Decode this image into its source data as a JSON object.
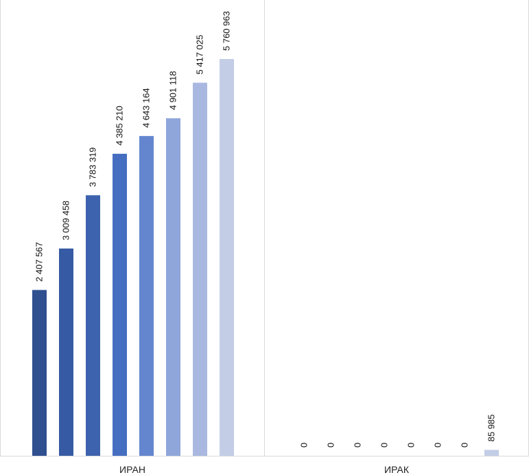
{
  "chart_data": {
    "type": "bar",
    "categories": [
      "ИРАН",
      "ИРАК"
    ],
    "series": [
      {
        "values": [
          2407567,
          0
        ],
        "labels": [
          "2 407 567",
          "0"
        ],
        "color": "#2f4f8f"
      },
      {
        "values": [
          3009458,
          0
        ],
        "labels": [
          "3 009 458",
          "0"
        ],
        "color": "#365aa3"
      },
      {
        "values": [
          3783319,
          0
        ],
        "labels": [
          "3 783 319",
          "0"
        ],
        "color": "#3d62ae"
      },
      {
        "values": [
          4385210,
          0
        ],
        "labels": [
          "4 385 210",
          "0"
        ],
        "color": "#456ec0"
      },
      {
        "values": [
          4643164,
          0
        ],
        "labels": [
          "4 643 164",
          "0"
        ],
        "color": "#6486cf"
      },
      {
        "values": [
          4901118,
          0
        ],
        "labels": [
          "4 901 118",
          "0"
        ],
        "color": "#8ea6da"
      },
      {
        "values": [
          5417025,
          0
        ],
        "labels": [
          "5 417 025",
          "0"
        ],
        "color": "#a9b8e0"
      },
      {
        "values": [
          5760963,
          85985
        ],
        "labels": [
          "5 760 963",
          "85 985"
        ],
        "color": "#c3cde6"
      }
    ],
    "ylim": [
      0,
      5760963
    ],
    "grid": false,
    "legend": "none"
  }
}
